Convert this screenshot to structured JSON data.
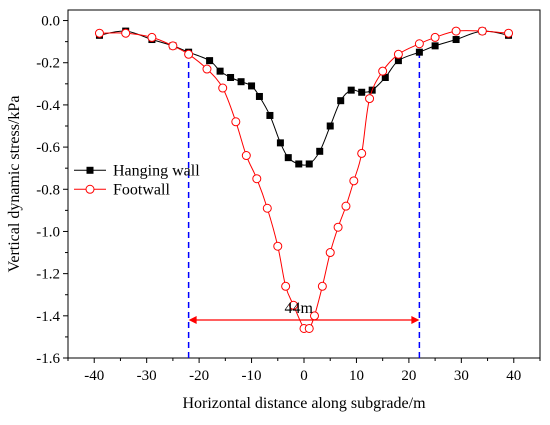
{
  "chart_data": {
    "type": "line",
    "xlabel": "Horizontal distance along subgrade/m",
    "ylabel": "Vertical dynamic stress/kPa",
    "xlim": [
      -45,
      45
    ],
    "ylim": [
      -1.6,
      0.05
    ],
    "xticks": [
      -40,
      -30,
      -20,
      -10,
      0,
      10,
      20,
      30,
      40
    ],
    "yticks": [
      0.0,
      -0.2,
      -0.4,
      -0.6,
      -0.8,
      -1.0,
      -1.2,
      -1.4,
      -1.6
    ],
    "ytick_labels": [
      "0.0",
      "-0.2",
      "-0.4",
      "-0.6",
      "-0.8",
      "-1.0",
      "-1.2",
      "-1.4",
      "-1.6"
    ],
    "legend_position": "left",
    "series": [
      {
        "name": "Hanging wall",
        "color": "#000000",
        "marker": "filled-square",
        "x": [
          -39,
          -34,
          -29,
          -25,
          -22,
          -18,
          -16,
          -14,
          -12,
          -10,
          -8.5,
          -6.5,
          -4.5,
          -3,
          -1,
          1,
          3,
          5,
          7,
          9,
          11,
          13,
          15.5,
          18,
          22,
          25,
          29,
          34,
          39
        ],
        "y": [
          -0.07,
          -0.05,
          -0.09,
          -0.12,
          -0.15,
          -0.19,
          -0.24,
          -0.27,
          -0.29,
          -0.31,
          -0.36,
          -0.45,
          -0.58,
          -0.65,
          -0.68,
          -0.68,
          -0.62,
          -0.5,
          -0.38,
          -0.33,
          -0.34,
          -0.33,
          -0.27,
          -0.19,
          -0.15,
          -0.12,
          -0.09,
          -0.05,
          -0.07
        ]
      },
      {
        "name": "Footwall",
        "color": "#ff0000",
        "marker": "open-circle",
        "x": [
          -39,
          -34,
          -29,
          -25,
          -22,
          -18.5,
          -15.5,
          -13,
          -11,
          -9,
          -7,
          -5,
          -3.5,
          -2,
          0,
          1,
          2,
          3.5,
          5,
          6.5,
          8,
          9.5,
          11,
          12.5,
          15,
          18,
          22,
          25,
          29,
          34,
          39
        ],
        "y": [
          -0.06,
          -0.06,
          -0.08,
          -0.12,
          -0.16,
          -0.23,
          -0.32,
          -0.48,
          -0.64,
          -0.75,
          -0.89,
          -1.07,
          -1.26,
          -1.35,
          -1.46,
          -1.46,
          -1.4,
          -1.26,
          -1.1,
          -0.98,
          -0.88,
          -0.76,
          -0.63,
          -0.37,
          -0.24,
          -0.16,
          -0.11,
          -0.08,
          -0.05,
          -0.05,
          -0.06
        ]
      }
    ],
    "reference_lines": [
      {
        "x": -22,
        "color": "#0000ff",
        "style": "dashed"
      },
      {
        "x": 22,
        "color": "#0000ff",
        "style": "dashed"
      }
    ],
    "annotations": [
      {
        "text": "44m",
        "from_x": -22,
        "to_x": 22,
        "at_y": -1.42,
        "color": "#ff0000"
      }
    ]
  }
}
